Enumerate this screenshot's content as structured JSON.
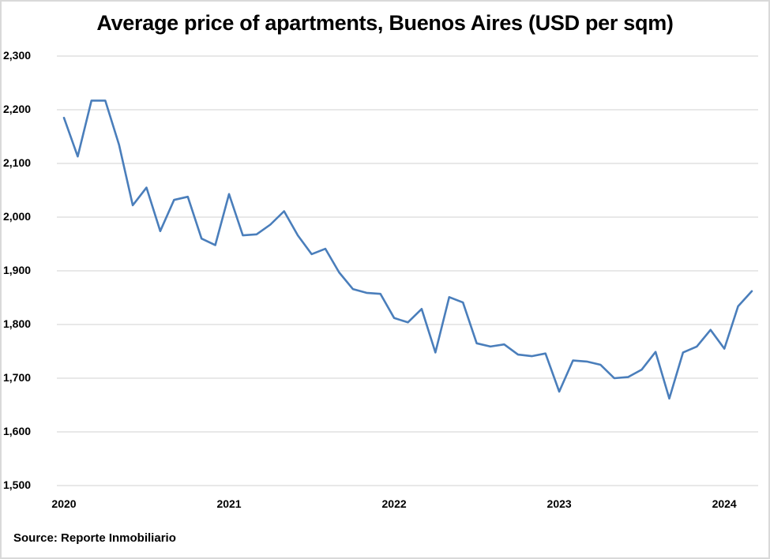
{
  "chart_data": {
    "type": "line",
    "title": "Average price of apartments, Buenos Aires (USD per sqm)",
    "xlabel": "",
    "ylabel": "",
    "ylim": [
      1500,
      2300
    ],
    "yticks": [
      "2,300",
      "2,200",
      "2,100",
      "2,000",
      "1,900",
      "1,800",
      "1,700",
      "1,600",
      "1,500"
    ],
    "ytick_values": [
      2300,
      2200,
      2100,
      2000,
      1900,
      1800,
      1700,
      1600,
      1500
    ],
    "xticks": [
      "2020",
      "2021",
      "2022",
      "2023",
      "2024"
    ],
    "xtick_index": [
      0,
      12,
      24,
      36,
      48
    ],
    "grid": true,
    "legend": "none",
    "line_color": "#4a7ebb",
    "series": [
      {
        "name": "Average price (USD per sqm)",
        "x": [
          "2020-01",
          "2020-02",
          "2020-03",
          "2020-04",
          "2020-05",
          "2020-06",
          "2020-07",
          "2020-08",
          "2020-09",
          "2020-10",
          "2020-11",
          "2020-12",
          "2021-01",
          "2021-02",
          "2021-03",
          "2021-04",
          "2021-05",
          "2021-06",
          "2021-07",
          "2021-08",
          "2021-09",
          "2021-10",
          "2021-11",
          "2021-12",
          "2022-01",
          "2022-02",
          "2022-03",
          "2022-04",
          "2022-05",
          "2022-06",
          "2022-07",
          "2022-08",
          "2022-09",
          "2022-10",
          "2022-11",
          "2022-12",
          "2023-01",
          "2023-02",
          "2023-03",
          "2023-04",
          "2023-05",
          "2023-06",
          "2023-07",
          "2023-08",
          "2023-09",
          "2023-10",
          "2023-11",
          "2023-12",
          "2024-01",
          "2024-02",
          "2024-03"
        ],
        "values": [
          2185,
          2113,
          2217,
          2217,
          2135,
          2022,
          2055,
          1974,
          2032,
          2038,
          1960,
          1948,
          2043,
          1966,
          1968,
          1986,
          2011,
          1966,
          1931,
          1941,
          1897,
          1866,
          1859,
          1857,
          1812,
          1804,
          1829,
          1748,
          1851,
          1841,
          1765,
          1759,
          1763,
          1744,
          1741,
          1746,
          1675,
          1733,
          1731,
          1725,
          1700,
          1702,
          1716,
          1749,
          1662,
          1748,
          1759,
          1790,
          1755,
          1834,
          1862
        ]
      }
    ],
    "source": "Source: Reporte Inmobiliario"
  }
}
